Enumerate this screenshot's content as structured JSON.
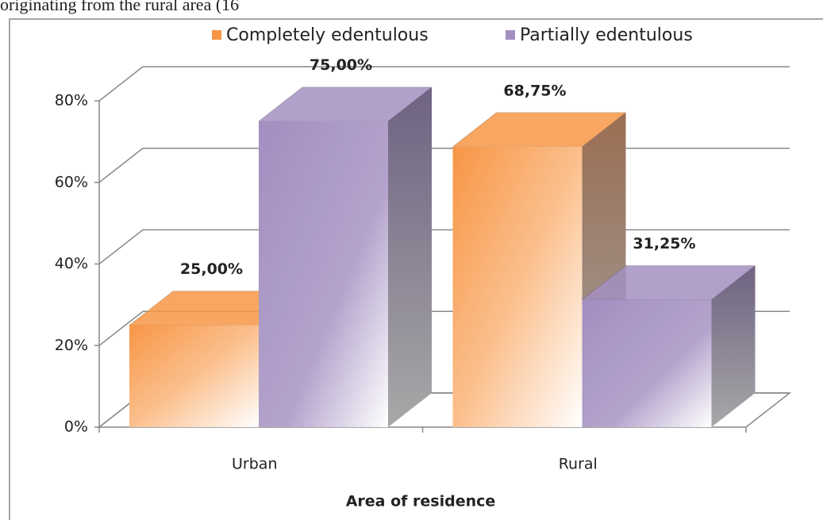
{
  "caption_fragment": "originating  from  the  rural  area  (16",
  "chart_data": {
    "type": "bar3d",
    "categories": [
      "Urban",
      "Rural"
    ],
    "series": [
      {
        "name": "Completely edentulous",
        "color": "#f79646",
        "values": [
          25,
          68.75
        ],
        "value_labels": [
          "25,00%",
          "68,75%"
        ]
      },
      {
        "name": "Partially edentulous",
        "color": "#a38fc0",
        "values": [
          75,
          31.25
        ],
        "value_labels": [
          "75,00%",
          "31,25%"
        ]
      }
    ],
    "ylim": [
      0,
      80
    ],
    "yticks": [
      {
        "value": 0,
        "label": "0%"
      },
      {
        "value": 20,
        "label": "20%"
      },
      {
        "value": 40,
        "label": "40%"
      },
      {
        "value": 60,
        "label": "60%"
      },
      {
        "value": 80,
        "label": "80%"
      }
    ],
    "x_label": "Area of residence",
    "legend": "top",
    "grid": true
  }
}
